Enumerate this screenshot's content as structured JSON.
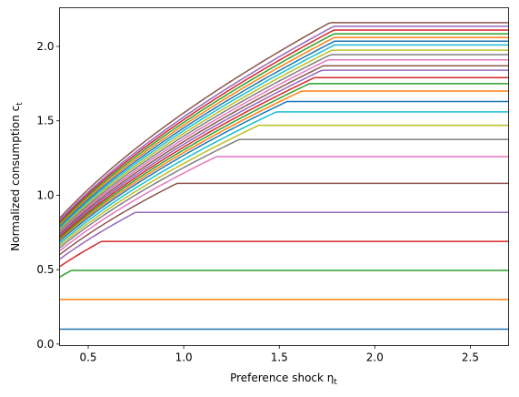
{
  "chart_data": {
    "type": "line",
    "xlabel": "Preference shock η",
    "xlabel_sub": "t",
    "ylabel": "Normalized consumption c",
    "ylabel_sub": "t",
    "xlim": [
      0.35,
      2.7
    ],
    "ylim": [
      -0.01,
      2.26
    ],
    "xticks": [
      0.5,
      1.0,
      1.5,
      2.0,
      2.5
    ],
    "xtick_labels": [
      "0.5",
      "1.0",
      "1.5",
      "2.0",
      "2.5"
    ],
    "yticks": [
      0.0,
      0.5,
      1.0,
      1.5,
      2.0
    ],
    "ytick_labels": [
      "0.0",
      "0.5",
      "1.0",
      "1.5",
      "2.0"
    ],
    "grid": false,
    "x_range": [
      0.35,
      2.7
    ],
    "curve_shape": {
      "ref_x": 0.35,
      "exponent": 0.58
    },
    "series": [
      {
        "color": "#1f77b4",
        "start": 0.1,
        "cap": 0.1
      },
      {
        "color": "#ff7f0e",
        "start": 0.3,
        "cap": 0.3
      },
      {
        "color": "#2ca02c",
        "start": 0.45,
        "cap": 0.495
      },
      {
        "color": "#d62728",
        "start": 0.52,
        "cap": 0.69
      },
      {
        "color": "#9467bd",
        "start": 0.57,
        "cap": 0.885
      },
      {
        "color": "#8c564b",
        "start": 0.6,
        "cap": 1.08
      },
      {
        "color": "#e377c2",
        "start": 0.625,
        "cap": 1.26
      },
      {
        "color": "#7f7f7f",
        "start": 0.645,
        "cap": 1.375
      },
      {
        "color": "#bcbd22",
        "start": 0.66,
        "cap": 1.47
      },
      {
        "color": "#17becf",
        "start": 0.675,
        "cap": 1.56
      },
      {
        "color": "#1f77b4",
        "start": 0.69,
        "cap": 1.63
      },
      {
        "color": "#ff7f0e",
        "start": 0.7,
        "cap": 1.7
      },
      {
        "color": "#2ca02c",
        "start": 0.71,
        "cap": 1.75
      },
      {
        "color": "#d62728",
        "start": 0.72,
        "cap": 1.79
      },
      {
        "color": "#9467bd",
        "start": 0.73,
        "cap": 1.84
      },
      {
        "color": "#8c564b",
        "start": 0.74,
        "cap": 1.87
      },
      {
        "color": "#e377c2",
        "start": 0.75,
        "cap": 1.91
      },
      {
        "color": "#7f7f7f",
        "start": 0.76,
        "cap": 1.945
      },
      {
        "color": "#bcbd22",
        "start": 0.77,
        "cap": 1.975
      },
      {
        "color": "#17becf",
        "start": 0.78,
        "cap": 2.01
      },
      {
        "color": "#1f77b4",
        "start": 0.79,
        "cap": 2.035
      },
      {
        "color": "#ff7f0e",
        "start": 0.8,
        "cap": 2.06
      },
      {
        "color": "#2ca02c",
        "start": 0.81,
        "cap": 2.085
      },
      {
        "color": "#d62728",
        "start": 0.82,
        "cap": 2.11
      },
      {
        "color": "#9467bd",
        "start": 0.83,
        "cap": 2.135
      },
      {
        "color": "#8c564b",
        "start": 0.845,
        "cap": 2.16
      }
    ]
  }
}
